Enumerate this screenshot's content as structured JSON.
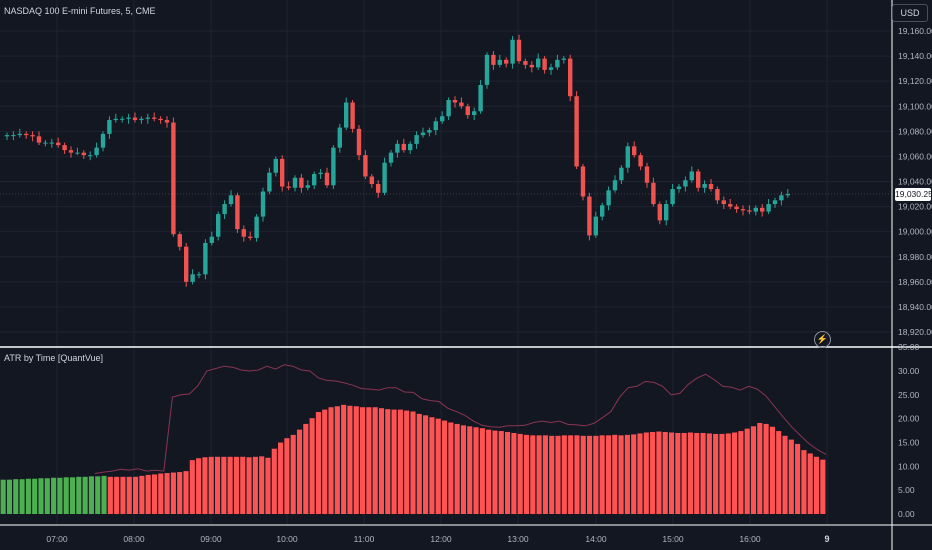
{
  "header": {
    "symbol": "NASDAQ 100 E-mini Futures, 5, CME",
    "currency": "USD",
    "last_price": "19,030.25"
  },
  "indicator": {
    "name": "ATR by Time [QuantVue]"
  },
  "icons": {
    "alert": "lightning-bolt-icon"
  },
  "colors": {
    "background": "#131722",
    "up": "#26a69a",
    "down": "#ef5350",
    "bar_green": "#4caf50",
    "bar_red": "#ff5252",
    "atr_line": "#8a3552",
    "grid": "#1f2330"
  },
  "chart_data": [
    {
      "type": "candlestick",
      "title": "NASDAQ 100 E-mini Futures, 5, CME",
      "x_ticks": [
        "07:00",
        "08:00",
        "09:00",
        "10:00",
        "11:00",
        "12:00",
        "13:00",
        "14:00",
        "15:00",
        "16:00",
        "9"
      ],
      "y_ticks": [
        "19,160.00",
        "19,140.00",
        "19,120.00",
        "19,100.00",
        "19,080.00",
        "19,060.00",
        "19,040.00",
        "19,020.00",
        "19,000.00",
        "18,980.00",
        "18,960.00",
        "18,940.00",
        "18,920.00"
      ],
      "ylim": [
        18910,
        19175
      ],
      "grid": true,
      "last_price": 19030.25,
      "close": [
        19077,
        19077,
        19078,
        19077,
        19076,
        19071,
        19071,
        19071,
        19069,
        19065,
        19063,
        19063,
        19061,
        19061,
        19067,
        19078,
        19089,
        19090,
        19090,
        19091,
        19089,
        19090,
        19091,
        19090,
        19089,
        19087,
        18998,
        18988,
        18960,
        18966,
        18966,
        18991,
        18996,
        19014,
        19022,
        19029,
        19002,
        18996,
        18995,
        19012,
        19032,
        19047,
        19058,
        19036,
        19035,
        19043,
        19035,
        19037,
        19046,
        19047,
        19037,
        19067,
        19083,
        19103,
        19082,
        19061,
        19044,
        19038,
        19031,
        19055,
        19063,
        19070,
        19065,
        19070,
        19077,
        19079,
        19081,
        19088,
        19092,
        19105,
        19103,
        19100,
        19093,
        19096,
        19117,
        19141,
        19133,
        19137,
        19134,
        19153,
        19136,
        19133,
        19131,
        19138,
        19129,
        19131,
        19137,
        19138,
        19108,
        19052,
        19028,
        18997,
        19012,
        19021,
        19033,
        19041,
        19051,
        19068,
        19061,
        19052,
        19039,
        19022,
        19009,
        19022,
        19034,
        19036,
        19041,
        19048,
        19035,
        19038,
        19034,
        19025,
        19022,
        19020,
        19018,
        19017,
        19016,
        19019,
        19016,
        19022,
        19025,
        19029,
        19030
      ]
    },
    {
      "type": "bar",
      "title": "ATR by Time [QuantVue]",
      "ylim": [
        -2,
        35
      ],
      "y_ticks": [
        "35.00",
        "30.00",
        "25.00",
        "20.00",
        "15.00",
        "10.00",
        "5.00",
        "0.00"
      ],
      "bar_colors_note": "first 17 bars green, rest red",
      "values": [
        7.2,
        7.2,
        7.3,
        7.3,
        7.4,
        7.4,
        7.5,
        7.5,
        7.6,
        7.6,
        7.7,
        7.7,
        7.8,
        7.8,
        7.9,
        7.9,
        8.0,
        7.8,
        7.8,
        7.8,
        7.8,
        7.8,
        8.0,
        8.2,
        8.3,
        8.5,
        8.6,
        8.7,
        8.8,
        9.0,
        11.3,
        11.7,
        11.9,
        12.0,
        12.0,
        12.0,
        12.0,
        12.0,
        12.0,
        11.9,
        12.0,
        12.1,
        11.8,
        13.7,
        15.0,
        15.9,
        16.6,
        17.7,
        18.9,
        20.1,
        21.4,
        21.9,
        22.4,
        22.6,
        22.9,
        22.7,
        22.6,
        22.4,
        22.4,
        22.4,
        22.2,
        22.0,
        21.9,
        21.9,
        21.7,
        21.5,
        21.0,
        20.7,
        20.3,
        20.0,
        19.6,
        19.2,
        18.9,
        18.6,
        18.4,
        18.2,
        18.0,
        17.7,
        17.5,
        17.4,
        17.2,
        17.0,
        16.8,
        16.6,
        16.5,
        16.5,
        16.5,
        16.4,
        16.4,
        16.5,
        16.5,
        16.5,
        16.4,
        16.4,
        16.4,
        16.5,
        16.5,
        16.6,
        16.5,
        16.6,
        16.7,
        16.9,
        17.1,
        17.2,
        17.3,
        17.2,
        17.1,
        17.0,
        17.0,
        17.1,
        17.0,
        17.0,
        16.9,
        16.8,
        16.8,
        16.9,
        17.1,
        17.4,
        17.9,
        18.4,
        19.1,
        18.9,
        18.3,
        17.4,
        16.4,
        15.6,
        14.7,
        13.4,
        12.7,
        12.0,
        11.4
      ],
      "line_name": "",
      "line_values": [
        8.5,
        8.8,
        9.0,
        9.4,
        9.2,
        9.5,
        9.0,
        9.2,
        9.0,
        24.5,
        25.0,
        25.2,
        27.0,
        30.0,
        30.5,
        31.0,
        30.8,
        30.2,
        30.0,
        30.2,
        31.0,
        30.4,
        31.3,
        31.0,
        30.2,
        30.0,
        28.5,
        28.0,
        27.9,
        27.5,
        27.0,
        26.3,
        26.2,
        26.0,
        26.5,
        26.5,
        25.6,
        25.5,
        24.2,
        23.8,
        23.6,
        22.2,
        21.5,
        20.7,
        19.5,
        18.6,
        18.3,
        18.2,
        18.5,
        18.5,
        18.6,
        19.2,
        19.5,
        19.2,
        19.5,
        18.8,
        18.7,
        18.5,
        19.0,
        20.2,
        21.5,
        24.5,
        26.5,
        26.8,
        27.8,
        27.6,
        26.8,
        25.0,
        25.3,
        27.2,
        28.5,
        29.3,
        28.2,
        26.8,
        26.6,
        26.0,
        26.8,
        26.2,
        24.8,
        22.6,
        20.4,
        18.3,
        16.5,
        14.8,
        13.5,
        12.5
      ]
    }
  ],
  "atr_y_labels": [
    "35.00",
    "30.00",
    "25.00",
    "20.00",
    "15.00",
    "10.00",
    "5.00",
    "0.00"
  ]
}
